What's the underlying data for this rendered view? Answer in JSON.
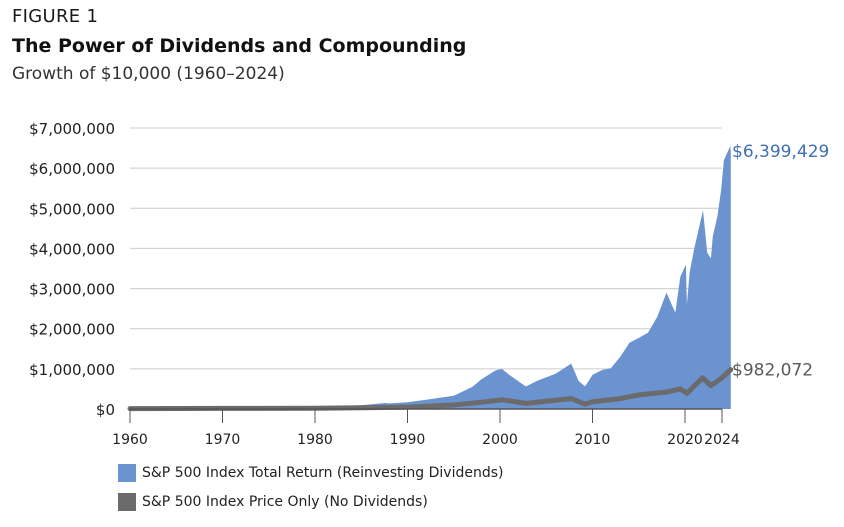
{
  "header": {
    "figure_label": "FIGURE 1",
    "title": "The Power of Dividends and Compounding",
    "subtitle": "Growth of $10,000 (1960–2024)"
  },
  "colors": {
    "total_return": "#6a93cf",
    "price_only": "#6b6b6b",
    "end_label_total": "#3f6fb5",
    "end_label_price": "#5a5a5a",
    "grid": "#cccccc"
  },
  "chart_data": {
    "type": "area",
    "title": "The Power of Dividends and Compounding",
    "subtitle": "Growth of $10,000 (1960–2024)",
    "xlabel": "",
    "ylabel": "",
    "xlim": [
      1960,
      2024
    ],
    "ylim": [
      0,
      7000000
    ],
    "x_ticks": [
      1960,
      1970,
      1980,
      1990,
      2000,
      2010,
      2020,
      2024
    ],
    "y_ticks": [
      0,
      1000000,
      2000000,
      3000000,
      4000000,
      5000000,
      6000000,
      7000000
    ],
    "y_tick_labels": [
      "$0",
      "$1,000,000",
      "$2,000,000",
      "$3,000,000",
      "$4,000,000",
      "$5,000,000",
      "$6,000,000",
      "$7,000,000"
    ],
    "grid": true,
    "legend_position": "bottom-left",
    "series": [
      {
        "name": "S&P 500 Index Total Return (Reinvesting Dividends)",
        "style": "area",
        "end_label": "$6,399,429",
        "points": [
          [
            1960,
            10000
          ],
          [
            1965,
            18000
          ],
          [
            1970,
            22000
          ],
          [
            1975,
            26000
          ],
          [
            1980,
            42000
          ],
          [
            1985,
            95000
          ],
          [
            1987.6,
            150000
          ],
          [
            1988,
            140000
          ],
          [
            1990,
            170000
          ],
          [
            1992,
            230000
          ],
          [
            1995,
            330000
          ],
          [
            1997,
            550000
          ],
          [
            1998,
            740000
          ],
          [
            1999.5,
            960000
          ],
          [
            2000.2,
            1000000
          ],
          [
            2001,
            850000
          ],
          [
            2002.8,
            560000
          ],
          [
            2004,
            700000
          ],
          [
            2006,
            880000
          ],
          [
            2007.7,
            1130000
          ],
          [
            2008.5,
            700000
          ],
          [
            2009.2,
            560000
          ],
          [
            2010,
            850000
          ],
          [
            2011,
            970000
          ],
          [
            2012,
            1020000
          ],
          [
            2013,
            1300000
          ],
          [
            2014,
            1650000
          ],
          [
            2015,
            1770000
          ],
          [
            2016,
            1900000
          ],
          [
            2017,
            2300000
          ],
          [
            2018,
            2900000
          ],
          [
            2018.95,
            2400000
          ],
          [
            2019.5,
            3300000
          ],
          [
            2020.1,
            3600000
          ],
          [
            2020.2,
            2600000
          ],
          [
            2020.5,
            3400000
          ],
          [
            2021,
            4000000
          ],
          [
            2021.95,
            4950000
          ],
          [
            2022.4,
            3900000
          ],
          [
            2022.8,
            3750000
          ],
          [
            2023,
            4300000
          ],
          [
            2023.5,
            4800000
          ],
          [
            2023.9,
            5450000
          ],
          [
            2024.2,
            6200000
          ],
          [
            2024.9,
            6550000
          ],
          [
            2024.95,
            6399429
          ]
        ]
      },
      {
        "name": "S&P 500 Index Price Only (No Dividends)",
        "style": "line",
        "end_label": "$982,072",
        "points": [
          [
            1960,
            10000
          ],
          [
            1970,
            14000
          ],
          [
            1980,
            19000
          ],
          [
            1985,
            29000
          ],
          [
            1990,
            48000
          ],
          [
            1995,
            100000
          ],
          [
            1998,
            170000
          ],
          [
            2000.2,
            230000
          ],
          [
            2002.8,
            140000
          ],
          [
            2007.7,
            260000
          ],
          [
            2009.2,
            120000
          ],
          [
            2010,
            180000
          ],
          [
            2013,
            260000
          ],
          [
            2015,
            350000
          ],
          [
            2018,
            420000
          ],
          [
            2019.5,
            500000
          ],
          [
            2020.2,
            390000
          ],
          [
            2021.9,
            780000
          ],
          [
            2022.8,
            580000
          ],
          [
            2023.9,
            760000
          ],
          [
            2024.95,
            982072
          ]
        ]
      }
    ]
  }
}
